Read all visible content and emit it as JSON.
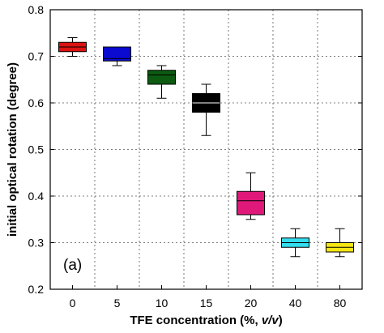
{
  "chart_data": {
    "type": "box",
    "xlabel": "TFE concentration (%, v/v)",
    "ylabel": "initial optical rotation (degree)",
    "ylim": [
      0.2,
      0.8
    ],
    "yticks": [
      "0.2",
      "0.3",
      "0.4",
      "0.5",
      "0.6",
      "0.7",
      "0.8"
    ],
    "categories": [
      "0",
      "5",
      "10",
      "15",
      "20",
      "40",
      "80"
    ],
    "annotation": "(a)",
    "grid": true,
    "boxes": [
      {
        "category": "0",
        "min": 0.7,
        "q1": 0.71,
        "median": 0.72,
        "q3": 0.73,
        "max": 0.74,
        "color": "#dd1111"
      },
      {
        "category": "5",
        "min": 0.68,
        "q1": 0.69,
        "median": 0.695,
        "q3": 0.72,
        "max": 0.72,
        "color": "#0a0ad0"
      },
      {
        "category": "10",
        "min": 0.61,
        "q1": 0.64,
        "median": 0.66,
        "q3": 0.67,
        "max": 0.68,
        "color": "#0d5a12"
      },
      {
        "category": "15",
        "min": 0.53,
        "q1": 0.58,
        "median": 0.6,
        "q3": 0.62,
        "max": 0.64,
        "color": "#000000"
      },
      {
        "category": "20",
        "min": 0.35,
        "q1": 0.36,
        "median": 0.39,
        "q3": 0.41,
        "max": 0.45,
        "color": "#e0187a"
      },
      {
        "category": "40",
        "min": 0.27,
        "q1": 0.29,
        "median": 0.3,
        "q3": 0.31,
        "max": 0.33,
        "color": "#33ddee"
      },
      {
        "category": "80",
        "min": 0.27,
        "q1": 0.28,
        "median": 0.29,
        "q3": 0.3,
        "max": 0.33,
        "color": "#f5e614"
      }
    ]
  }
}
